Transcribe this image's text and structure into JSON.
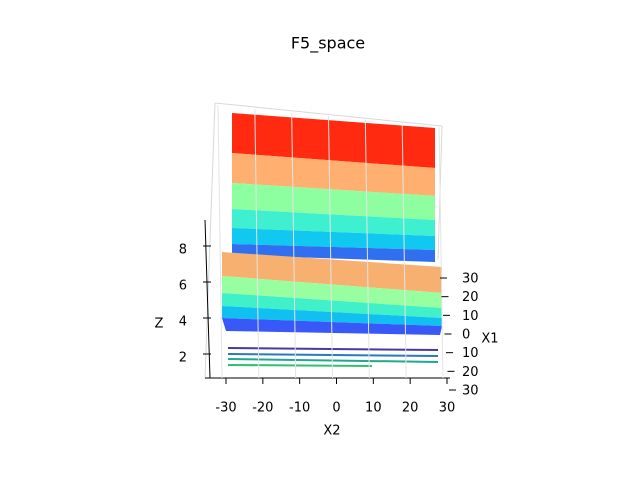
{
  "chart_data": {
    "type": "surface3d",
    "title": "F5_space",
    "xlabel": "X2",
    "ylabel": "X1",
    "zlabel": "Z",
    "xlim": [
      -30,
      30
    ],
    "xticks": [
      -30,
      -20,
      -10,
      0,
      10,
      20,
      30
    ],
    "ylim": [
      -30,
      30
    ],
    "yticks": [
      30,
      20,
      10,
      0,
      10,
      20,
      30
    ],
    "zlim": [
      2,
      8
    ],
    "zticks": [
      2,
      4,
      6,
      8
    ],
    "colormap": "rainbow"
  }
}
